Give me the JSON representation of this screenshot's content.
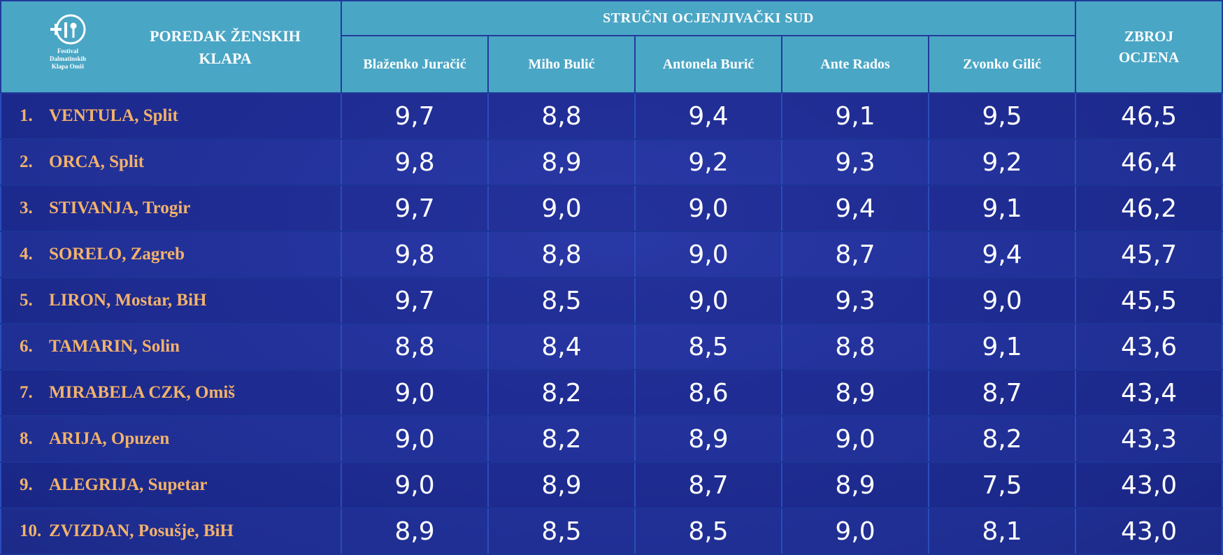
{
  "header": {
    "logo_text": [
      "Festival",
      "Dalmatinskih",
      "Klapa Omiš"
    ],
    "title_line1": "POREDAK ŽENSKIH",
    "title_line2": "KLAPA",
    "jury_label": "STRUČNI OCJENJIVAČKI SUD",
    "sum_line1": "ZBROJ",
    "sum_line2": "OCJENA",
    "judges": [
      "Blaženko Juračić",
      "Miho Bulić",
      "Antonela Burić",
      "Ante Rados",
      "Zvonko Gilić"
    ]
  },
  "rows": [
    {
      "rank": "1.",
      "name": "VENTULA, Split",
      "scores": [
        "9,7",
        "8,8",
        "9,4",
        "9,1",
        "9,5"
      ],
      "total": "46,5"
    },
    {
      "rank": "2.",
      "name": "ORCA, Split",
      "scores": [
        "9,8",
        "8,9",
        "9,2",
        "9,3",
        "9,2"
      ],
      "total": "46,4"
    },
    {
      "rank": "3.",
      "name": "STIVANJA, Trogir",
      "scores": [
        "9,7",
        "9,0",
        "9,0",
        "9,4",
        "9,1"
      ],
      "total": "46,2"
    },
    {
      "rank": "4.",
      "name": "SORELO, Zagreb",
      "scores": [
        "9,8",
        "8,8",
        "9,0",
        "8,7",
        "9,4"
      ],
      "total": "45,7"
    },
    {
      "rank": "5.",
      "name": "LIRON, Mostar, BiH",
      "scores": [
        "9,7",
        "8,5",
        "9,0",
        "9,3",
        "9,0"
      ],
      "total": "45,5"
    },
    {
      "rank": "6.",
      "name": "TAMARIN, Solin",
      "scores": [
        "8,8",
        "8,4",
        "8,5",
        "8,8",
        "9,1"
      ],
      "total": "43,6"
    },
    {
      "rank": "7.",
      "name": "MIRABELA CZK, Omiš",
      "scores": [
        "9,0",
        "8,2",
        "8,6",
        "8,9",
        "8,7"
      ],
      "total": "43,4"
    },
    {
      "rank": "8.",
      "name": "ARIJA, Opuzen",
      "scores": [
        "9,0",
        "8,2",
        "8,9",
        "9,0",
        "8,2"
      ],
      "total": "43,3"
    },
    {
      "rank": "9.",
      "name": "ALEGRIJA, Supetar",
      "scores": [
        "9,0",
        "8,9",
        "8,7",
        "8,9",
        "7,5"
      ],
      "total": "43,0"
    },
    {
      "rank": "10.",
      "name": "ZVIZDAN, Posušje, BiH",
      "scores": [
        "8,9",
        "8,5",
        "8,5",
        "9,0",
        "8,1"
      ],
      "total": "43,0"
    }
  ],
  "colors": {
    "header_bg": "#4aa6c5",
    "name_text": "#f3b26a",
    "score_text": "#ffffff",
    "background": "#1b2a8a"
  },
  "icons": {
    "logo": "festival-logo-icon"
  }
}
